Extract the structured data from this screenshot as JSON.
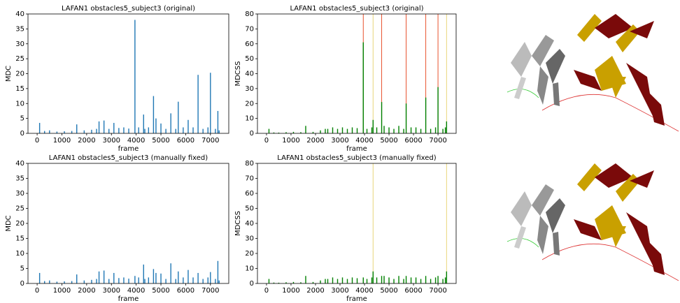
{
  "chart_data": [
    {
      "type": "bar",
      "title": "LAFAN1 obstacles5_subject3 (original)",
      "xlabel": "frame",
      "ylabel": "MDC",
      "color": "#1f77b4",
      "x": [
        100,
        300,
        500,
        800,
        1100,
        1400,
        1600,
        1900,
        2200,
        2400,
        2500,
        2700,
        2900,
        3100,
        3300,
        3500,
        3700,
        3950,
        4100,
        4300,
        4350,
        4500,
        4700,
        4800,
        5000,
        5200,
        5400,
        5600,
        5700,
        5900,
        6100,
        6300,
        6500,
        6700,
        6900,
        7000,
        7200,
        7300,
        7350
      ],
      "values": [
        3.5,
        0.8,
        1,
        0.6,
        0.7,
        0.8,
        3,
        1,
        1.2,
        1.5,
        4,
        4.3,
        1.5,
        3.5,
        1.8,
        2,
        1.6,
        38,
        2,
        6.3,
        1.5,
        2,
        12.5,
        5,
        3.3,
        1.5,
        6.7,
        1.5,
        10.6,
        2,
        4.5,
        2,
        19.6,
        1.5,
        2,
        20.3,
        1.5,
        7.5,
        1
      ],
      "xlim": [
        -370,
        7740
      ],
      "ylim": [
        0,
        40
      ],
      "xticks": [
        0,
        1000,
        2000,
        3000,
        4000,
        5000,
        6000,
        7000
      ],
      "yticks": [
        0,
        5,
        10,
        15,
        20,
        25,
        30,
        35,
        40
      ]
    },
    {
      "type": "bar",
      "title": "LAFAN1 obstacles5_subject3 (original)",
      "xlabel": "frame",
      "ylabel": "MDCSS",
      "color": "#008000",
      "x": [
        100,
        300,
        500,
        800,
        1100,
        1400,
        1600,
        1900,
        2200,
        2400,
        2500,
        2700,
        2900,
        3100,
        3300,
        3500,
        3700,
        3950,
        4100,
        4300,
        4350,
        4500,
        4700,
        4800,
        5000,
        5200,
        5400,
        5600,
        5700,
        5900,
        6100,
        6300,
        6500,
        6700,
        6900,
        7000,
        7200,
        7300,
        7350
      ],
      "values": [
        3,
        0.6,
        0.5,
        0.8,
        1,
        0.8,
        5,
        1,
        2,
        3,
        3,
        4,
        3,
        4,
        3,
        4,
        3.5,
        61,
        3,
        4,
        9,
        4,
        21,
        5,
        4,
        3,
        5,
        3,
        20,
        4,
        4,
        3,
        24,
        3,
        4,
        31,
        3,
        4,
        8
      ],
      "vlines": [
        {
          "x": 3950,
          "color": "#e8532f"
        },
        {
          "x": 4350,
          "color": "#e8d57a"
        },
        {
          "x": 4700,
          "color": "#e8532f"
        },
        {
          "x": 5700,
          "color": "#e8532f"
        },
        {
          "x": 6500,
          "color": "#e8532f"
        },
        {
          "x": 7000,
          "color": "#e8532f"
        },
        {
          "x": 7350,
          "color": "#e8d57a"
        }
      ],
      "xlim": [
        -370,
        7740
      ],
      "ylim": [
        0,
        80
      ],
      "xticks": [
        0,
        1000,
        2000,
        3000,
        4000,
        5000,
        6000,
        7000
      ],
      "yticks": [
        0,
        10,
        20,
        30,
        40,
        50,
        60,
        70,
        80
      ]
    },
    {
      "type": "bar",
      "title": "LAFAN1 obstacles5_subject3 (manually fixed)",
      "xlabel": "frame",
      "ylabel": "MDC",
      "color": "#1f77b4",
      "x": [
        100,
        300,
        500,
        800,
        1100,
        1400,
        1600,
        1900,
        2200,
        2400,
        2500,
        2700,
        2900,
        3100,
        3300,
        3500,
        3700,
        3950,
        4100,
        4300,
        4350,
        4500,
        4700,
        4800,
        5000,
        5200,
        5400,
        5600,
        5700,
        5900,
        6100,
        6300,
        6500,
        6700,
        6900,
        7000,
        7200,
        7300,
        7350
      ],
      "values": [
        3.5,
        0.8,
        1,
        0.6,
        0.7,
        0.8,
        3,
        1,
        1.2,
        1.5,
        4,
        4.3,
        1.5,
        3.5,
        1.8,
        2,
        1.6,
        2.5,
        2,
        6.3,
        1.5,
        2,
        4.8,
        3.5,
        3.3,
        1.5,
        6.7,
        1.5,
        4,
        2,
        4.5,
        2,
        3.5,
        1.5,
        2,
        3.8,
        1.5,
        7.5,
        1
      ],
      "xlim": [
        -370,
        7740
      ],
      "ylim": [
        0,
        40
      ],
      "xticks": [
        0,
        1000,
        2000,
        3000,
        4000,
        5000,
        6000,
        7000
      ],
      "yticks": [
        0,
        5,
        10,
        15,
        20,
        25,
        30,
        35,
        40
      ]
    },
    {
      "type": "bar",
      "title": "LAFAN1 obstacles5_subject3 (manually fixed)",
      "xlabel": "frame",
      "ylabel": "MDCSS",
      "color": "#008000",
      "x": [
        100,
        300,
        500,
        800,
        1100,
        1400,
        1600,
        1900,
        2200,
        2400,
        2500,
        2700,
        2900,
        3100,
        3300,
        3500,
        3700,
        3950,
        4100,
        4300,
        4350,
        4500,
        4700,
        4800,
        5000,
        5200,
        5400,
        5600,
        5700,
        5900,
        6100,
        6300,
        6500,
        6700,
        6900,
        7000,
        7200,
        7300,
        7350
      ],
      "values": [
        3,
        0.6,
        0.5,
        0.8,
        1,
        0.8,
        5,
        1,
        2,
        3,
        3,
        4,
        3,
        4,
        3,
        4,
        3.5,
        4,
        3,
        4,
        8,
        4,
        5,
        5,
        4,
        3,
        5,
        3,
        5,
        4,
        4,
        3,
        5,
        3,
        4,
        5,
        3,
        4,
        8
      ],
      "vlines": [
        {
          "x": 4350,
          "color": "#e8d57a"
        },
        {
          "x": 7350,
          "color": "#e8d57a"
        }
      ],
      "xlim": [
        -370,
        7740
      ],
      "ylim": [
        0,
        80
      ],
      "xticks": [
        0,
        1000,
        2000,
        3000,
        4000,
        5000,
        6000,
        7000
      ],
      "yticks": [
        0,
        10,
        20,
        30,
        40,
        50,
        60,
        70,
        80
      ]
    }
  ]
}
